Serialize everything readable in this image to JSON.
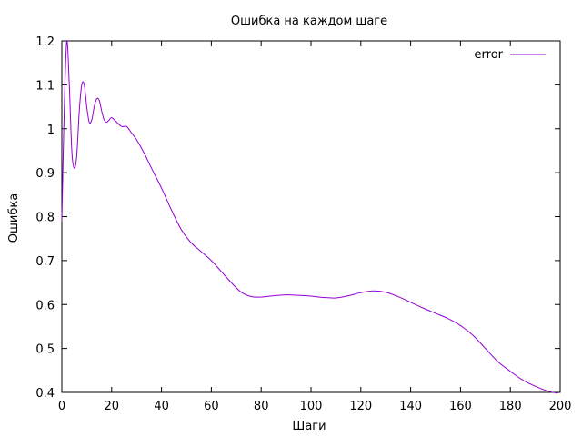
{
  "chart_data": {
    "type": "line",
    "title": "Ошибка на каждом шаге",
    "xlabel": "Шаги",
    "ylabel": "Ошибка",
    "xlim": [
      0,
      200
    ],
    "ylim": [
      0.4,
      1.2
    ],
    "xticks": [
      0,
      20,
      40,
      60,
      80,
      100,
      120,
      140,
      160,
      180,
      200
    ],
    "yticks": [
      0.4,
      0.5,
      0.6,
      0.7,
      0.8,
      0.9,
      1,
      1.1,
      1.2
    ],
    "xtick_labels": [
      "0",
      "20",
      "40",
      "60",
      "80",
      "100",
      "120",
      "140",
      "160",
      "180",
      "200"
    ],
    "ytick_labels": [
      "0.4",
      "0.5",
      "0.6",
      "0.7",
      "0.8",
      "0.9",
      "1",
      "1.1",
      "1.2"
    ],
    "grid": false,
    "legend_position": "top-right",
    "series": [
      {
        "name": "error",
        "color": "#9400d3",
        "x": [
          0,
          1,
          2,
          3,
          4,
          5,
          6,
          7,
          8,
          9,
          10,
          11,
          12,
          13,
          14,
          15,
          16,
          17,
          18,
          19,
          20,
          22,
          24,
          26,
          28,
          30,
          33,
          36,
          40,
          44,
          48,
          52,
          56,
          60,
          64,
          68,
          72,
          76,
          80,
          85,
          90,
          95,
          100,
          105,
          110,
          115,
          120,
          125,
          130,
          135,
          140,
          145,
          150,
          155,
          160,
          165,
          170,
          175,
          180,
          185,
          190,
          195,
          199
        ],
        "y": [
          0.79,
          1.05,
          1.2,
          1.1,
          0.95,
          0.91,
          0.94,
          1.04,
          1.1,
          1.1,
          1.05,
          1.015,
          1.02,
          1.05,
          1.068,
          1.065,
          1.04,
          1.02,
          1.015,
          1.02,
          1.025,
          1.015,
          1.005,
          1.005,
          0.99,
          0.975,
          0.945,
          0.91,
          0.865,
          0.815,
          0.77,
          0.74,
          0.72,
          0.7,
          0.675,
          0.65,
          0.628,
          0.618,
          0.617,
          0.62,
          0.622,
          0.621,
          0.619,
          0.616,
          0.615,
          0.62,
          0.627,
          0.631,
          0.628,
          0.618,
          0.605,
          0.592,
          0.58,
          0.568,
          0.552,
          0.53,
          0.5,
          0.47,
          0.448,
          0.428,
          0.414,
          0.403,
          0.398
        ]
      }
    ]
  }
}
